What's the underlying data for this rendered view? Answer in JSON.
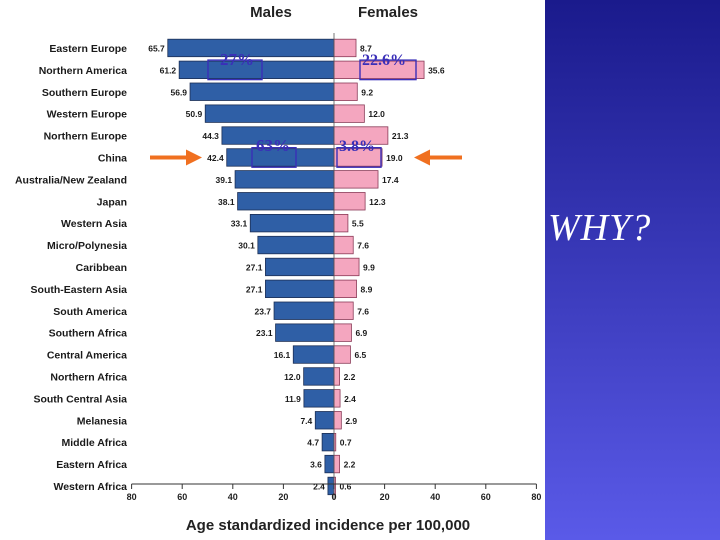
{
  "slide": {
    "why_text": "WHY?",
    "callouts": {
      "north_america_male": "27%",
      "north_america_female": "22.6%",
      "china_male": "63%",
      "china_female": "3.8%"
    },
    "colors": {
      "background_top": "#1a1a8c",
      "background_bottom": "#5a5ae8",
      "male_bar": "#2f5fa6",
      "female_bar": "#f4a6bf",
      "arrow": "#f07020",
      "callout_text": "#3a2fb8"
    }
  },
  "chart_data": {
    "type": "bar",
    "orientation": "horizontal-population-pyramid",
    "title_left": "Males",
    "title_right": "Females",
    "xlabel": "Age standardized incidence per 100,000",
    "xticks": [
      "80",
      "60",
      "40",
      "20",
      "0",
      "20",
      "40",
      "60",
      "80"
    ],
    "xlim": [
      -80,
      80
    ],
    "categories": [
      "Eastern Europe",
      "Northern America",
      "Southern Europe",
      "Western Europe",
      "Northern Europe",
      "China",
      "Australia/New Zealand",
      "Japan",
      "Western Asia",
      "Micro/Polynesia",
      "Caribbean",
      "South-Eastern Asia",
      "South America",
      "Southern Africa",
      "Central America",
      "Northern Africa",
      "South Central Asia",
      "Melanesia",
      "Middle Africa",
      "Eastern Africa",
      "Western Africa"
    ],
    "series": [
      {
        "name": "Males",
        "values": [
          65.7,
          61.2,
          56.9,
          50.9,
          44.3,
          42.4,
          39.1,
          38.1,
          33.1,
          30.1,
          27.1,
          27.1,
          23.7,
          23.1,
          16.1,
          12.0,
          11.9,
          7.4,
          4.7,
          3.6,
          2.4
        ],
        "labels": [
          "65.7",
          "61.2",
          "56.9",
          "50.9",
          "44.3",
          "42.4",
          "39.1",
          "38.1",
          "33.1",
          "30.1",
          "27.1",
          "27.1",
          "23.7",
          "23.1",
          "16.1",
          "12.0",
          "11.9",
          "7.4",
          "4.7",
          "3.6",
          "2.4"
        ]
      },
      {
        "name": "Females",
        "values": [
          8.7,
          35.6,
          9.2,
          12.0,
          21.3,
          19.0,
          17.4,
          12.3,
          5.5,
          7.6,
          9.9,
          8.9,
          7.6,
          6.9,
          6.5,
          2.2,
          2.4,
          2.9,
          0.7,
          2.2,
          0.6
        ],
        "labels": [
          "8.7",
          "35.6",
          "9.2",
          "12.0",
          "21.3",
          "19.0",
          "17.4",
          "12.3",
          "5.5",
          "7.6",
          "9.9",
          "8.9",
          "7.6",
          "6.9",
          "6.5",
          "2.2",
          "2.4",
          "2.9",
          "0.7",
          "2.2",
          "0.6"
        ]
      }
    ],
    "arrows": [
      "China"
    ]
  }
}
